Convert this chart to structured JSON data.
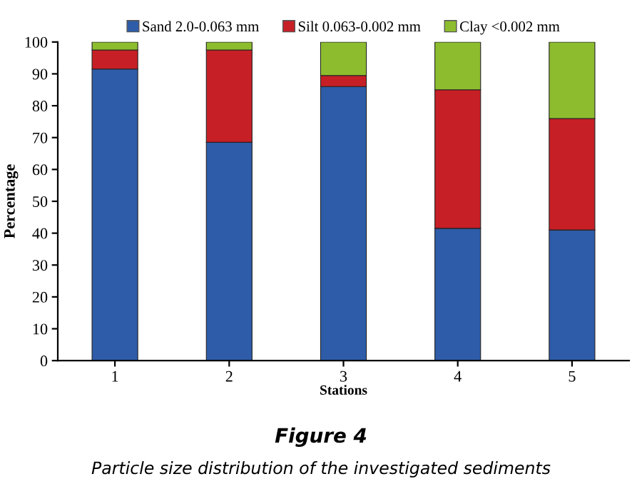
{
  "chart_data": {
    "type": "bar",
    "stacked": true,
    "categories": [
      "1",
      "2",
      "3",
      "4",
      "5"
    ],
    "series": [
      {
        "name": "Sand 2.0-0.063 mm",
        "color": "#2e5ca8",
        "values": [
          91.5,
          68.5,
          86,
          41.5,
          41
        ]
      },
      {
        "name": "Silt 0.063-0.002 mm",
        "color": "#c61f26",
        "values": [
          6,
          29,
          3.5,
          43.5,
          35
        ]
      },
      {
        "name": "Clay <0.002 mm",
        "color": "#8dbd2e",
        "values": [
          2.5,
          2.5,
          10.5,
          15,
          24
        ]
      }
    ],
    "xlabel": "Stations",
    "ylabel": "Percentage",
    "ylim": [
      0,
      100
    ],
    "yticks": [
      0,
      10,
      20,
      30,
      40,
      50,
      60,
      70,
      80,
      90,
      100
    ],
    "grid": false,
    "legend": "top",
    "annotations": [
      "Figure 4",
      "Particle size distribution of the investigated sediments"
    ]
  }
}
